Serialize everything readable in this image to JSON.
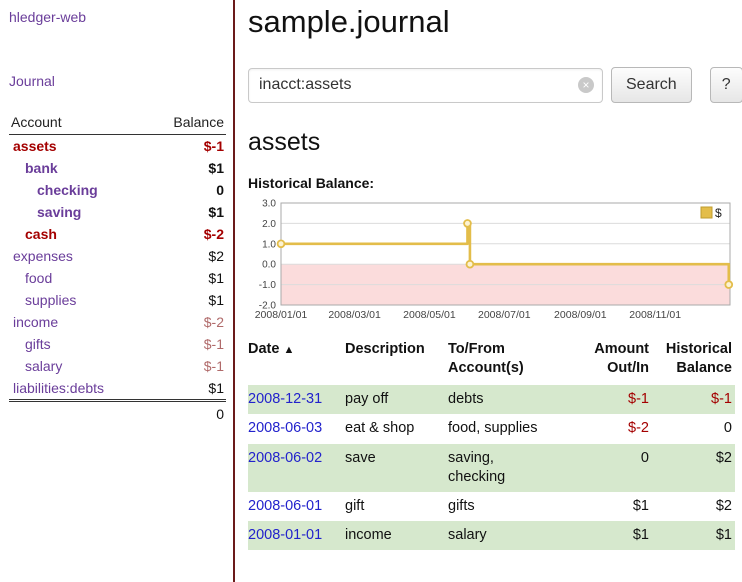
{
  "colors": {
    "link_purple": "#6a3d9a",
    "negative_strong": "#a40000",
    "negative_muted": "#b06a6a",
    "date_link_blue": "#2222cc",
    "row_stripe_green": "#d6e8cd",
    "sidebar_divider_maroon": "#6b1a1a",
    "chart_line_gold": "#e3bd4a",
    "chart_negative_fill": "#fbdcdc"
  },
  "sidebar": {
    "app_link": "hledger-web",
    "journal_link": "Journal",
    "accounts": {
      "header_account": "Account",
      "header_balance": "Balance",
      "rows": [
        {
          "name": "assets",
          "balance": "$-1"
        },
        {
          "name": "bank",
          "balance": "$1"
        },
        {
          "name": "checking",
          "balance": "0"
        },
        {
          "name": "saving",
          "balance": "$1"
        },
        {
          "name": "cash",
          "balance": "$-2"
        },
        {
          "name": "expenses",
          "balance": "$2"
        },
        {
          "name": "food",
          "balance": "$1"
        },
        {
          "name": "supplies",
          "balance": "$1"
        },
        {
          "name": "income",
          "balance": "$-2"
        },
        {
          "name": "gifts",
          "balance": "$-1"
        },
        {
          "name": "salary",
          "balance": "$-1"
        },
        {
          "name": "liabilities:debts",
          "balance": "$1"
        }
      ],
      "total": "0"
    }
  },
  "main": {
    "title": "sample.journal",
    "search": {
      "query": "inacct:assets",
      "clear_icon": "×",
      "search_button": "Search",
      "help_button": "?"
    },
    "account_heading": "assets",
    "chart_title": "Historical Balance:"
  },
  "chart_data": {
    "type": "line",
    "title": "Historical Balance",
    "xlim": [
      0,
      366
    ],
    "ylim": [
      -2,
      3
    ],
    "yticks": [
      3.0,
      2.0,
      1.0,
      0.0,
      -1.0,
      -2.0
    ],
    "ytick_labels": [
      "3.0",
      "2.0",
      "1.0",
      "0.0",
      "-1.0",
      "-2.0"
    ],
    "xticks": [
      0,
      60,
      121,
      182,
      244,
      305
    ],
    "xtick_labels": [
      "2008/01/01",
      "2008/03/01",
      "2008/05/01",
      "2008/07/01",
      "2008/09/01",
      "2008/11/01"
    ],
    "grid": true,
    "legend_position": "top-right",
    "negative_region": {
      "from": 0,
      "to": -2,
      "color": "#fbdcdc"
    },
    "series": [
      {
        "name": "$",
        "color": "#e3bd4a",
        "points": [
          [
            0,
            1
          ],
          [
            152,
            1
          ],
          [
            152,
            2
          ],
          [
            154,
            2
          ],
          [
            154,
            0
          ],
          [
            365,
            0
          ],
          [
            365,
            -1
          ]
        ],
        "markers": [
          [
            0,
            1
          ],
          [
            152,
            2
          ],
          [
            154,
            0
          ],
          [
            365,
            -1
          ]
        ]
      }
    ]
  },
  "register": {
    "headers": {
      "date": "Date",
      "sort_icon": "▲",
      "description": "Description",
      "accounts": "To/From\nAccount(s)",
      "amount": "Amount\nOut/In",
      "balance": "Historical\nBalance"
    },
    "rows": [
      {
        "date": "2008-12-31",
        "description": "pay off",
        "accounts": "debts",
        "amount": "$-1",
        "balance": "$-1"
      },
      {
        "date": "2008-06-03",
        "description": "eat & shop",
        "accounts": "food, supplies",
        "amount": "$-2",
        "balance": "0"
      },
      {
        "date": "2008-06-02",
        "description": "save",
        "accounts": "saving,\nchecking",
        "amount": "0",
        "balance": "$2"
      },
      {
        "date": "2008-06-01",
        "description": "gift",
        "accounts": "gifts",
        "amount": "$1",
        "balance": "$2"
      },
      {
        "date": "2008-01-01",
        "description": "income",
        "accounts": "salary",
        "amount": "$1",
        "balance": "$1"
      }
    ]
  }
}
